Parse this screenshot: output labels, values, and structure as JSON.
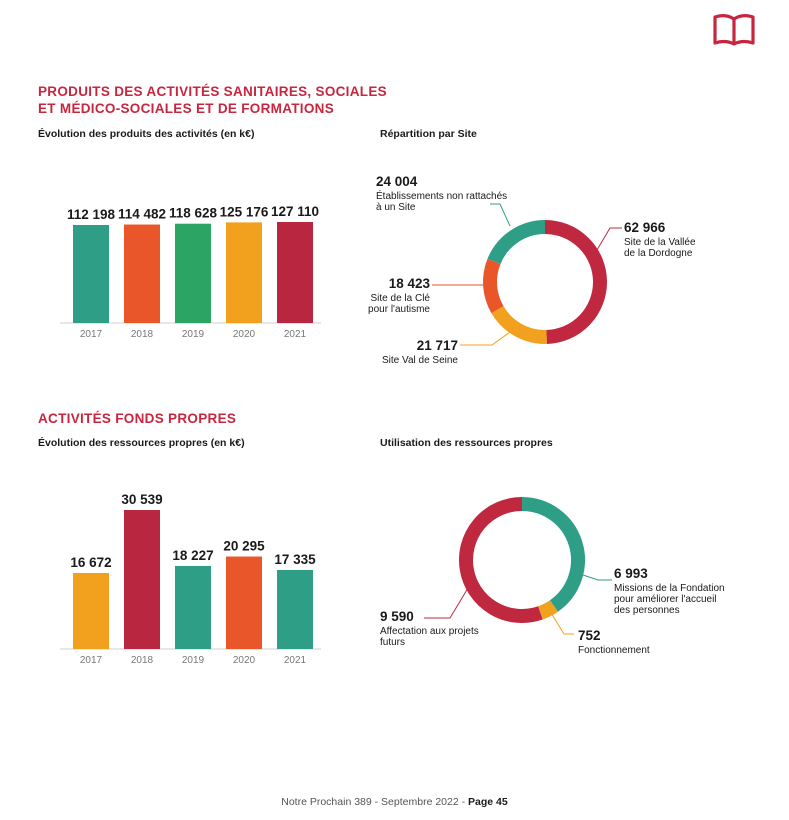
{
  "page": {
    "section1_title_line1": "PRODUITS DES ACTIVITÉS SANITAIRES, SOCIALES",
    "section1_title_line2": "ET MÉDICO-SOCIALES ET DE FORMATIONS",
    "section2_title": "ACTIVITÉS FONDS PROPRES",
    "footer_text": "Notre Prochain 389 - Septembre 2022 - ",
    "footer_page": "Page 45",
    "icon": "open-book-icon",
    "accent_color": "#c8263f"
  },
  "chart_data": [
    {
      "type": "bar",
      "title": "Évolution des produits des activités (en k€)",
      "categories": [
        "2017",
        "2018",
        "2019",
        "2020",
        "2021"
      ],
      "values": [
        112198,
        114482,
        118628,
        125176,
        127110
      ],
      "value_labels": [
        "112 198",
        "114 482",
        "118 628",
        "125 176",
        "127 110"
      ],
      "colors": [
        "#2e9e86",
        "#e8562a",
        "#2ca463",
        "#f2a11f",
        "#b8273f"
      ],
      "ylim": [
        0,
        130000
      ]
    },
    {
      "type": "pie",
      "title": "Répartition par Site",
      "slices": [
        {
          "value": 62966,
          "label": "62 966",
          "text": [
            "Site de la Vallée",
            "de la Dordogne"
          ],
          "color": "#c0283f"
        },
        {
          "value": 21717,
          "label": "21 717",
          "text": [
            "Site Val de Seine"
          ],
          "color": "#f2a11f"
        },
        {
          "value": 18423,
          "label": "18 423",
          "text": [
            "Site de la Clé",
            "pour l'autisme"
          ],
          "color": "#e8562a"
        },
        {
          "value": 24004,
          "label": "24 004",
          "text": [
            "Établissements non rattachés",
            "à un Site"
          ],
          "color": "#2e9e86"
        }
      ]
    },
    {
      "type": "bar",
      "title": "Évolution des ressources propres (en k€)",
      "categories": [
        "2017",
        "2018",
        "2019",
        "2020",
        "2021"
      ],
      "values": [
        16672,
        30539,
        18227,
        20295,
        17335
      ],
      "value_labels": [
        "16 672",
        "30 539",
        "18 227",
        "20 295",
        "17 335"
      ],
      "colors": [
        "#f2a11f",
        "#b8273f",
        "#2e9e86",
        "#e8562a",
        "#2e9e86"
      ],
      "ylim": [
        0,
        32000
      ]
    },
    {
      "type": "pie",
      "title": "Utilisation des ressources propres",
      "slices": [
        {
          "value": 6993,
          "label": "6 993",
          "text": [
            "Missions de la Fondation",
            "pour améliorer l'accueil",
            "des personnes"
          ],
          "color": "#2e9e86"
        },
        {
          "value": 752,
          "label": "752",
          "text": [
            "Fonctionnement"
          ],
          "color": "#f2a11f"
        },
        {
          "value": 9590,
          "label": "9 590",
          "text": [
            "Affectation aux projets",
            "futurs"
          ],
          "color": "#c0283f"
        }
      ]
    }
  ]
}
